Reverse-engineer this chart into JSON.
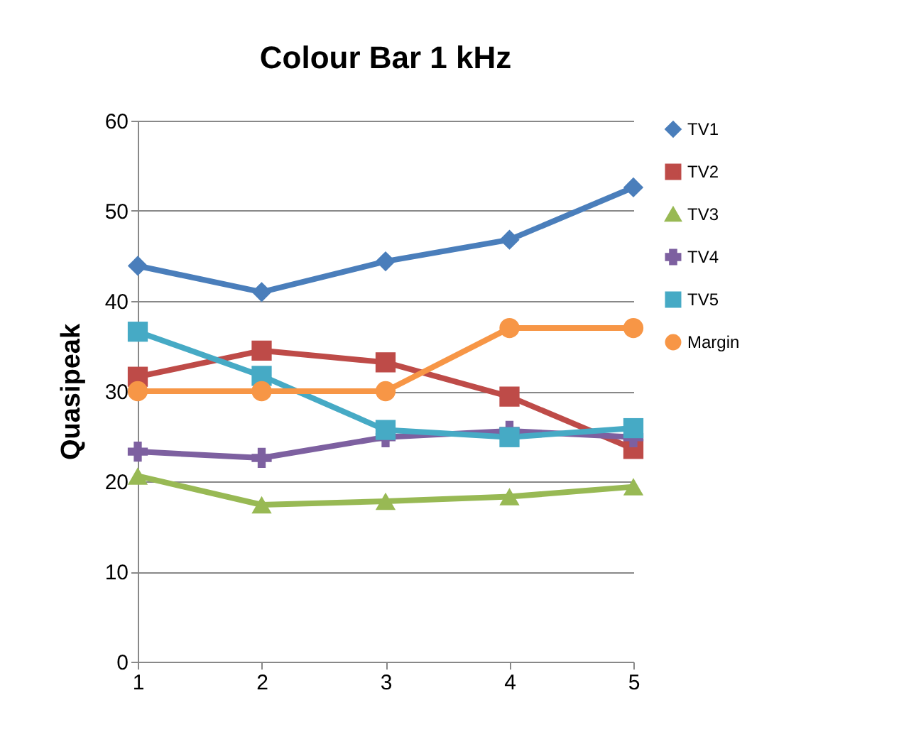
{
  "chart_data": {
    "type": "line",
    "title": "Colour Bar 1 kHz",
    "ylabel": "Quasipeak",
    "x": [
      1,
      2,
      3,
      4,
      5
    ],
    "xlim": [
      1,
      5
    ],
    "xticks": [
      1,
      2,
      3,
      4,
      5
    ],
    "ylim": [
      0,
      60
    ],
    "yticks": [
      0,
      10,
      20,
      30,
      40,
      50,
      60
    ],
    "grid": "y",
    "legend": "right",
    "series": [
      {
        "name": "TV1",
        "color": "#4a7ebb",
        "marker": "diamond",
        "values": [
          43.9,
          41.0,
          44.4,
          46.8,
          52.6
        ]
      },
      {
        "name": "TV2",
        "color": "#be4b48",
        "marker": "square",
        "values": [
          31.6,
          34.5,
          33.2,
          29.4,
          23.6
        ]
      },
      {
        "name": "TV3",
        "color": "#98b954",
        "marker": "triangle",
        "values": [
          20.6,
          17.4,
          17.8,
          18.3,
          19.4
        ]
      },
      {
        "name": "TV4",
        "color": "#7d60a0",
        "marker": "cross",
        "values": [
          23.3,
          22.6,
          24.9,
          25.6,
          24.9
        ]
      },
      {
        "name": "TV5",
        "color": "#46aac5",
        "marker": "square",
        "values": [
          36.6,
          31.7,
          25.7,
          24.9,
          25.9
        ]
      },
      {
        "name": "Margin",
        "color": "#f79646",
        "marker": "circle",
        "values": [
          30,
          30,
          30,
          37,
          37
        ]
      }
    ]
  }
}
